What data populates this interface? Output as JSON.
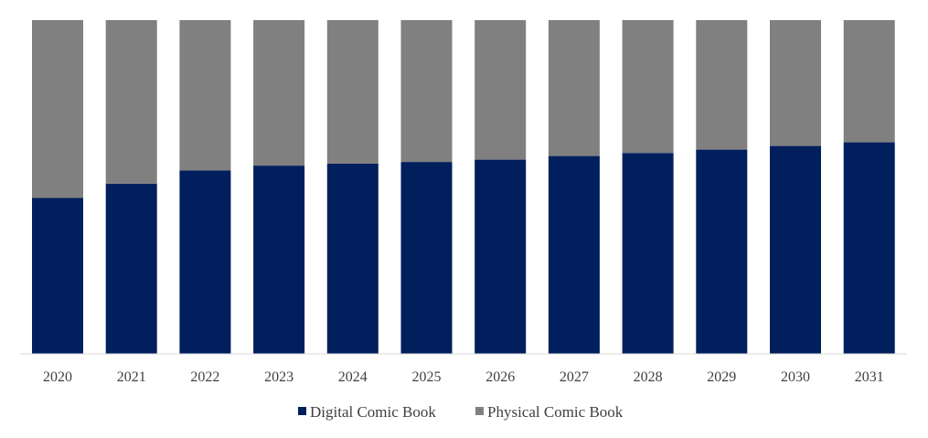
{
  "chart_data": {
    "type": "bar",
    "stacked": true,
    "normalized": true,
    "categories": [
      "2020",
      "2021",
      "2022",
      "2023",
      "2024",
      "2025",
      "2026",
      "2027",
      "2028",
      "2029",
      "2030",
      "2031"
    ],
    "series": [
      {
        "name": "Digital Comic Book",
        "color": "#001f5c",
        "values": [
          46.7,
          51.0,
          55.0,
          56.4,
          57.0,
          57.5,
          58.2,
          59.3,
          60.2,
          61.2,
          62.3,
          63.4
        ]
      },
      {
        "name": "Physical Comic Book",
        "color": "#808080",
        "values": [
          53.3,
          49.0,
          45.0,
          43.6,
          43.0,
          42.5,
          41.8,
          40.7,
          39.8,
          38.8,
          37.7,
          36.6
        ]
      }
    ],
    "ylim": [
      0,
      100
    ],
    "grid": false,
    "legend_position": "bottom"
  }
}
